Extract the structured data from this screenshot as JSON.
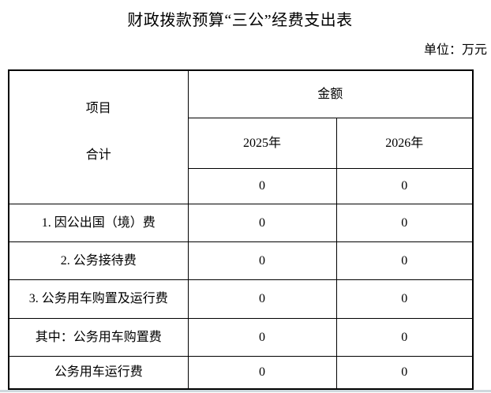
{
  "page": {
    "title": "财政拨款预算“三公”经费支出表",
    "unit_label": "单位：万元"
  },
  "table": {
    "stub_header": "项目",
    "amount_header": "金额",
    "year_columns": [
      "2025年",
      "2026年"
    ],
    "rows": [
      {
        "label": "合计",
        "values": [
          "0",
          "0"
        ]
      },
      {
        "label": "1. 因公出国（境）费",
        "values": [
          "0",
          "0"
        ]
      },
      {
        "label": "2. 公务接待费",
        "values": [
          "0",
          "0"
        ]
      },
      {
        "label": "3. 公务用车购置及运行费",
        "values": [
          "0",
          "0"
        ]
      },
      {
        "label": "其中：公务用车购置费",
        "values": [
          "0",
          "0"
        ]
      },
      {
        "label": "公务用车运行费",
        "values": [
          "0",
          "0"
        ]
      }
    ]
  }
}
